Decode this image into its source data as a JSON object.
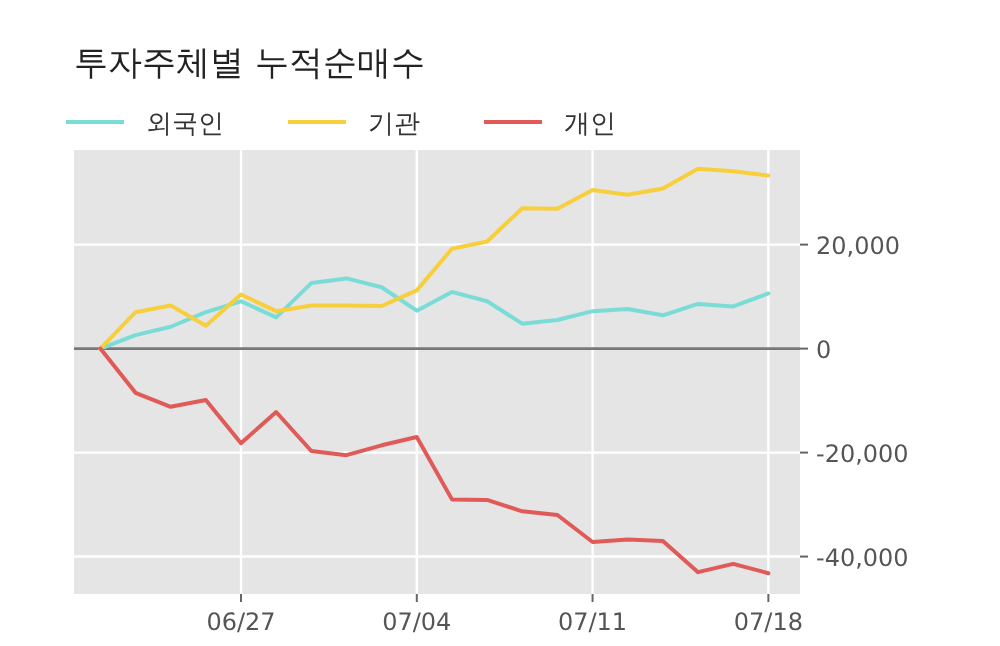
{
  "chart_data": {
    "type": "line",
    "title": "투자주체별 누적순매수",
    "categories": [
      null,
      null,
      null,
      null,
      "06/27",
      null,
      null,
      null,
      null,
      "07/04",
      null,
      null,
      null,
      null,
      "07/11",
      null,
      null,
      null,
      null,
      "07/18"
    ],
    "series": [
      {
        "name": "외국인",
        "color": "#7adcd6",
        "values": [
          0,
          2600,
          4200,
          7000,
          9100,
          6000,
          12600,
          13500,
          11800,
          7300,
          10900,
          9100,
          4800,
          5500,
          7200,
          7600,
          6400,
          8600,
          8100,
          10600
        ]
      },
      {
        "name": "기관",
        "color": "#f7cf3d",
        "values": [
          0,
          7000,
          8300,
          4400,
          10400,
          7200,
          8300,
          8300,
          8200,
          11200,
          19200,
          20600,
          27000,
          26900,
          30500,
          29600,
          30800,
          34600,
          34100,
          33300
        ]
      },
      {
        "name": "개인",
        "color": "#e05a58",
        "values": [
          0,
          -8500,
          -11200,
          -9900,
          -18200,
          -12200,
          -19700,
          -20500,
          -18600,
          -17000,
          -29000,
          -29100,
          -31300,
          -32000,
          -37200,
          -36700,
          -37000,
          -43000,
          -41400,
          -43200
        ]
      }
    ],
    "ylim": [
      -47200,
      38200
    ],
    "yticks": [
      {
        "value": -40000,
        "label": "-40,000"
      },
      {
        "value": -20000,
        "label": "-20,000"
      },
      0,
      {
        "value": 20000,
        "label": "20,000"
      }
    ],
    "ref_lines": [
      {
        "axis": "y",
        "value": 0,
        "color": "#777777"
      }
    ],
    "grid": true,
    "legend": "top left",
    "marker": "none",
    "line_style": "solid"
  }
}
